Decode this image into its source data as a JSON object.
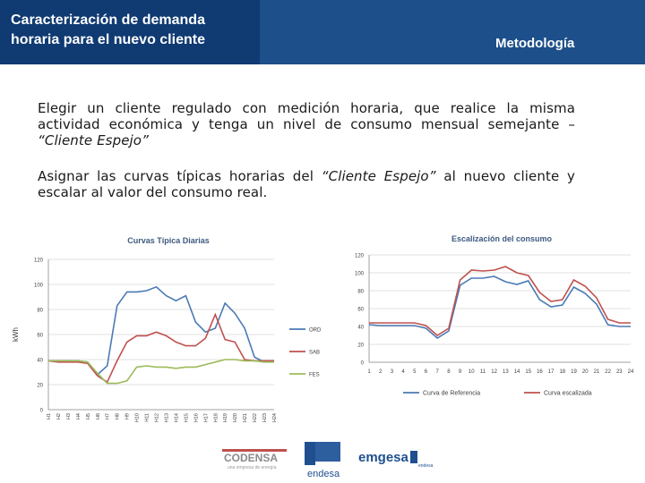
{
  "header": {
    "title_line1": "Caracterización de demanda",
    "title_line2": "horaria para el nuevo cliente",
    "section_title": "Metodología"
  },
  "body": {
    "p1_text": "Elegir un cliente regulado con medición horaria, que realice la misma actividad económica y tenga un nivel de consumo mensual semejante –",
    "p1_italic": "“Cliente Espejo”",
    "p2_a": "Asignar las curvas típicas horarias del ",
    "p2_italic": "“Cliente Espejo”",
    "p2_b": " al nuevo cliente y escalar al valor del consumo real."
  },
  "logos": {
    "codensa": "CODENSA",
    "codensa_sub": "una empresa de energía",
    "endesa": "endesa",
    "emgesa": "emgesa",
    "emgesa_sub": "endesa"
  },
  "colors": {
    "header_left": "#0f3a72",
    "header_right": "#1d4f8a",
    "series_blue": "#4a7ab5",
    "series_red": "#c0504d",
    "series_green": "#9bbb59"
  },
  "chart_data": [
    {
      "type": "line",
      "title": "Curvas Típica Diarias",
      "ylabel": "kWh",
      "ylim": [
        0,
        120
      ],
      "yticks": [
        0,
        20,
        40,
        60,
        80,
        100,
        120
      ],
      "categories": [
        "H1",
        "H2",
        "H3",
        "H4",
        "H5",
        "H6",
        "H7",
        "H8",
        "H9",
        "H10",
        "H11",
        "H12",
        "H13",
        "H14",
        "H15",
        "H16",
        "H17",
        "H18",
        "H19",
        "H20",
        "H21",
        "H22",
        "H23",
        "H24"
      ],
      "legend_position": "right",
      "grid": true,
      "series": [
        {
          "name": "ORD",
          "color": "#4a7ab5",
          "values": [
            39,
            39,
            39,
            39,
            38,
            28,
            35,
            83,
            94,
            94,
            95,
            98,
            91,
            87,
            91,
            70,
            62,
            65,
            85,
            77,
            65,
            42,
            38,
            39
          ]
        },
        {
          "name": "SAB",
          "color": "#c0504d",
          "values": [
            39,
            38,
            38,
            38,
            37,
            27,
            22,
            39,
            54,
            59,
            59,
            62,
            59,
            54,
            51,
            51,
            57,
            76,
            56,
            54,
            40,
            39,
            39,
            39
          ]
        },
        {
          "name": "FES",
          "color": "#9bbb59",
          "values": [
            39,
            39,
            39,
            39,
            38,
            29,
            21,
            21,
            23,
            34,
            35,
            34,
            34,
            33,
            34,
            34,
            36,
            38,
            40,
            40,
            39,
            39,
            38,
            38
          ]
        }
      ]
    },
    {
      "type": "line",
      "title": "Escalización del consumo",
      "ylim": [
        0,
        120
      ],
      "yticks": [
        0,
        20,
        40,
        60,
        80,
        100,
        120
      ],
      "categories": [
        "1",
        "2",
        "3",
        "4",
        "5",
        "6",
        "7",
        "8",
        "9",
        "10",
        "11",
        "12",
        "13",
        "14",
        "15",
        "16",
        "17",
        "18",
        "19",
        "20",
        "21",
        "22",
        "23",
        "24"
      ],
      "legend_position": "bottom",
      "grid": true,
      "series": [
        {
          "name": "Curva de Referencia",
          "color": "#4a7ab5",
          "values": [
            42,
            41,
            41,
            41,
            41,
            38,
            27,
            35,
            86,
            94,
            94,
            96,
            90,
            87,
            91,
            70,
            62,
            64,
            84,
            77,
            65,
            42,
            40,
            40
          ]
        },
        {
          "name": "Curva escalizada",
          "color": "#c0504d",
          "values": [
            44,
            44,
            44,
            44,
            44,
            41,
            30,
            38,
            92,
            103,
            102,
            103,
            107,
            100,
            97,
            78,
            68,
            70,
            92,
            85,
            72,
            48,
            44,
            44
          ]
        }
      ]
    }
  ]
}
